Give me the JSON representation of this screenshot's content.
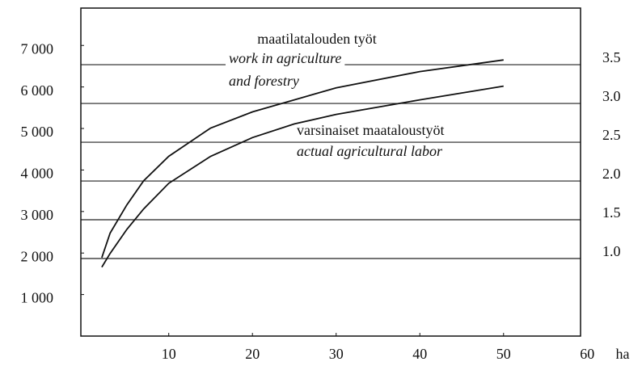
{
  "chart_data": {
    "type": "line",
    "x": [
      2,
      3,
      5,
      7,
      10,
      15,
      20,
      25,
      30,
      40,
      50
    ],
    "series": [
      {
        "color": "#111111",
        "values": [
          1890,
          2480,
          3160,
          3740,
          4330,
          5010,
          5400,
          5690,
          5980,
          6370,
          6650
        ]
      },
      {
        "color": "#111111",
        "values": [
          1660,
          1990,
          2570,
          3060,
          3680,
          4330,
          4780,
          5110,
          5340,
          5690,
          6020
        ]
      }
    ],
    "xlim": [
      -0.5,
      59.2
    ],
    "xticks": [
      10,
      20,
      30,
      40,
      50,
      60
    ],
    "xlabel": "ha",
    "ylim": [
      0,
      7900
    ],
    "yticks": [
      {
        "value": 1000,
        "label": "1 000"
      },
      {
        "value": 2000,
        "label": "2 000"
      },
      {
        "value": 3000,
        "label": "3 000"
      },
      {
        "value": 4000,
        "label": "4 000"
      },
      {
        "value": 5000,
        "label": "5 000"
      },
      {
        "value": 6000,
        "label": "6 000"
      },
      {
        "value": 7000,
        "label": "7 000"
      }
    ],
    "y2lim": [
      0,
      4.23
    ],
    "y2ticks": [
      {
        "value": 1.0,
        "label": "1.0"
      },
      1.5,
      {
        "value": 2.0,
        "label": "2.0"
      },
      2.5,
      {
        "value": 3.0,
        "label": "3.0"
      },
      3.5
    ],
    "grid": true,
    "annotations": [
      "maatilatalouden työt",
      "work in agriculture",
      "and forestry",
      "varsinaiset maataloustyöt",
      "actual agricultural labor"
    ]
  }
}
